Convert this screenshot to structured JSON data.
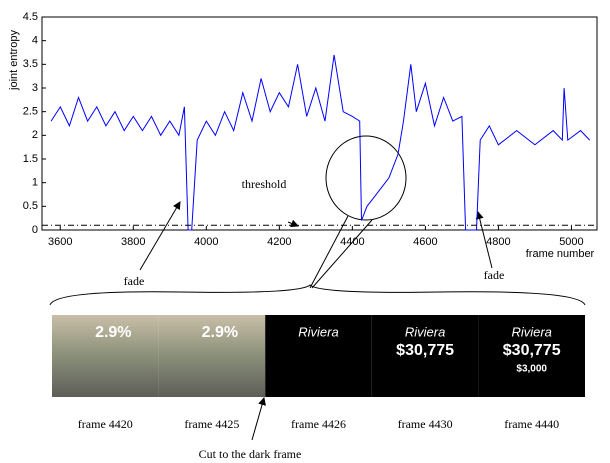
{
  "chart_data": {
    "type": "line",
    "ylabel": "joint entropy",
    "xlabel": "frame number",
    "xlim": [
      3550,
      5070
    ],
    "xticks": [
      3600,
      3800,
      4000,
      4200,
      4400,
      4600,
      4800,
      5000
    ],
    "ylim": [
      0,
      4.5
    ],
    "yticks": [
      0,
      0.5,
      1,
      1.5,
      2,
      2.5,
      3,
      3.5,
      4,
      4.5
    ],
    "series": [
      {
        "color": "#0000ff",
        "x": [
          3575,
          3600,
          3625,
          3650,
          3675,
          3700,
          3725,
          3750,
          3775,
          3800,
          3825,
          3850,
          3875,
          3900,
          3925,
          3940,
          3950,
          3960,
          3975,
          4000,
          4025,
          4050,
          4075,
          4100,
          4125,
          4150,
          4175,
          4200,
          4225,
          4250,
          4275,
          4300,
          4325,
          4350,
          4375,
          4400,
          4420,
          4425,
          4440,
          4460,
          4480,
          4500,
          4525,
          4540,
          4560,
          4575,
          4600,
          4625,
          4650,
          4675,
          4700,
          4710,
          4740,
          4750,
          4775,
          4800,
          4850,
          4900,
          4950,
          4975,
          4980,
          4990,
          5025,
          5050
        ],
        "values": [
          2.3,
          2.6,
          2.2,
          2.8,
          2.3,
          2.6,
          2.2,
          2.5,
          2.1,
          2.4,
          2.1,
          2.4,
          2.0,
          2.3,
          2.0,
          2.6,
          0,
          0,
          1.9,
          2.3,
          2.0,
          2.5,
          2.1,
          2.9,
          2.3,
          3.2,
          2.5,
          2.9,
          2.6,
          3.5,
          2.4,
          3.0,
          2.3,
          3.7,
          2.5,
          2.4,
          2.3,
          0.2,
          0.5,
          0.7,
          0.9,
          1.1,
          1.6,
          2.3,
          3.5,
          2.5,
          3.1,
          2.2,
          2.8,
          2.3,
          2.4,
          0,
          0,
          1.9,
          2.2,
          1.8,
          2.1,
          1.8,
          2.1,
          1.9,
          3.0,
          1.9,
          2.1,
          1.9
        ]
      },
      {
        "name": "threshold",
        "color": "#000000",
        "x": [
          3550,
          5070
        ],
        "values": [
          0.1,
          0.1
        ]
      }
    ],
    "annotations": [
      "fade",
      "fade"
    ]
  },
  "filmstrip": {
    "frames": [
      {
        "label": "frame 4420",
        "texts": [
          "2.9%"
        ]
      },
      {
        "label": "frame 4425",
        "texts": [
          "2.9%"
        ]
      },
      {
        "label": "frame 4426",
        "texts": [
          "Riviera"
        ]
      },
      {
        "label": "frame 4430",
        "texts": [
          "Riviera",
          "$30,775"
        ]
      },
      {
        "label": "frame 4440",
        "texts": [
          "Riviera",
          "$30,775",
          "$3,000"
        ]
      }
    ],
    "caption": "Cut to the dark frame"
  }
}
